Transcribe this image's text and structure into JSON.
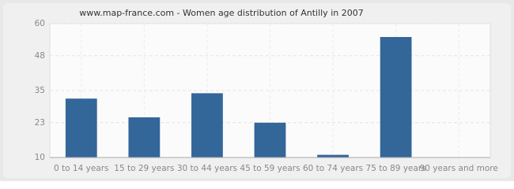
{
  "chart_data": {
    "type": "bar",
    "title": "www.map-france.com - Women age distribution of Antilly in 2007",
    "categories": [
      "0 to 14 years",
      "15 to 29 years",
      "30 to 44 years",
      "45 to 59 years",
      "60 to 74 years",
      "75 to 89 years",
      "90 years and more"
    ],
    "values": [
      32,
      25,
      34,
      23,
      11,
      55,
      10
    ],
    "color": "#336699",
    "ylim": [
      10,
      60
    ],
    "yticks": [
      10,
      23,
      35,
      48,
      60
    ],
    "grid": true
  }
}
